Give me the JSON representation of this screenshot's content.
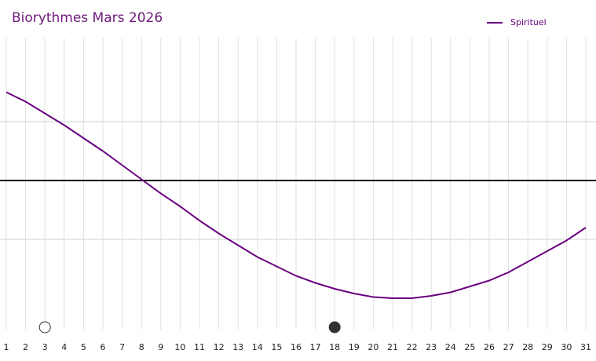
{
  "chart_data": {
    "type": "line",
    "title": "Biorythmes Mars 2026",
    "x": [
      1,
      2,
      3,
      4,
      5,
      6,
      7,
      8,
      9,
      10,
      11,
      12,
      13,
      14,
      15,
      16,
      17,
      18,
      19,
      20,
      21,
      22,
      23,
      24,
      25,
      26,
      27,
      28,
      29,
      30,
      31
    ],
    "xlim": [
      1,
      31
    ],
    "xticks": [
      1,
      2,
      3,
      4,
      5,
      6,
      7,
      8,
      9,
      10,
      11,
      12,
      13,
      14,
      15,
      16,
      17,
      18,
      19,
      20,
      21,
      22,
      23,
      24,
      25,
      26,
      27,
      28,
      29,
      30,
      31
    ],
    "series": [
      {
        "name": "Spirituel",
        "color": "#6a0080",
        "values": [
          75,
          67,
          57,
          47,
          36,
          25,
          13,
          1,
          -11,
          -22,
          -34,
          -45,
          -55,
          -65,
          -73,
          -81,
          -87,
          -92,
          -96,
          -99,
          -100,
          -100,
          -98,
          -95,
          -90,
          -85,
          -78,
          -69,
          -60,
          -51,
          -40
        ]
      }
    ],
    "ylim": [
      -100,
      100
    ],
    "yticks": [
      -50,
      0,
      50
    ],
    "grid": true,
    "legend": "top-right",
    "markers": [
      {
        "x": 3,
        "filled": false
      },
      {
        "x": 18,
        "filled": true
      }
    ]
  }
}
